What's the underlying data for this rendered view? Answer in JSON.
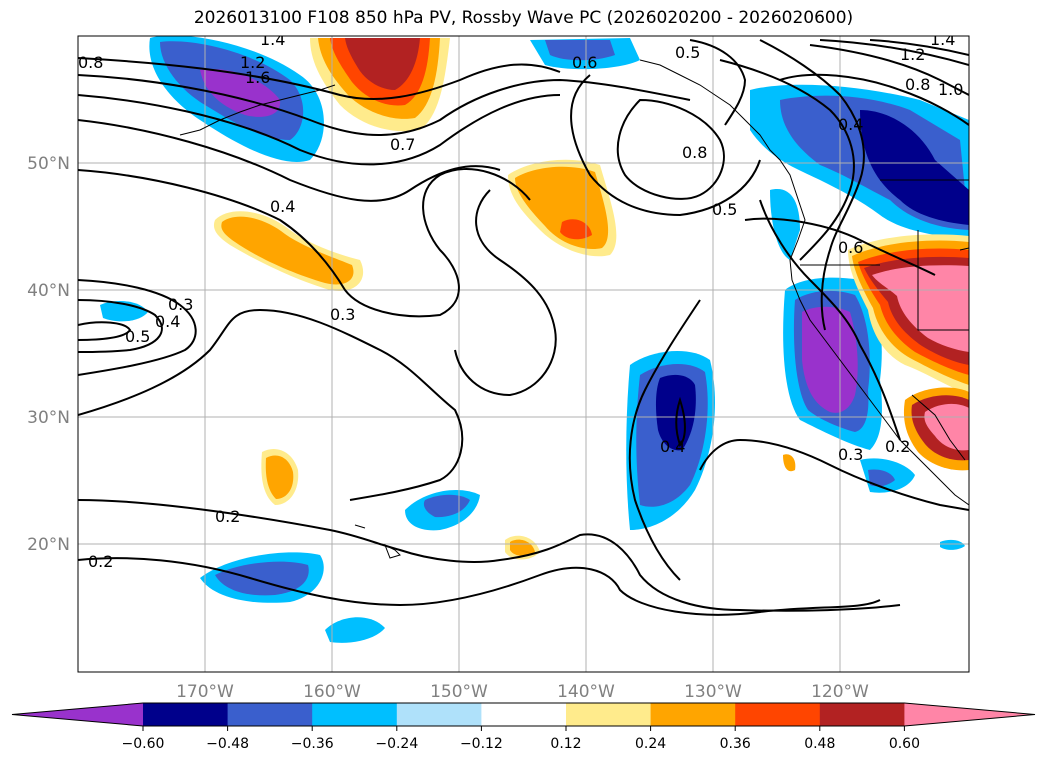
{
  "title": "2026013100 F108 850 hPa PV, Rossby Wave PC (2026020200 - 2026020600)",
  "map": {
    "lon_labels": [
      "170°W",
      "160°W",
      "150°W",
      "140°W",
      "130°W",
      "120°W"
    ],
    "lat_labels": [
      "50°N",
      "40°N",
      "30°N",
      "20°N"
    ],
    "contour_labels": [
      "0.8",
      "1.2",
      "1.6",
      "1.4",
      "0.7",
      "0.6",
      "0.5",
      "0.8",
      "0.5",
      "1.2",
      "1.4",
      "1.0",
      "0.8",
      "0.4",
      "0.4",
      "0.6",
      "0.3",
      "0.3",
      "0.4",
      "0.5",
      "0.4",
      "0.3",
      "0.2",
      "0.2",
      "0.2"
    ]
  },
  "colorbar": {
    "ticks": [
      "−0.60",
      "−0.48",
      "−0.36",
      "−0.24",
      "−0.12",
      "0.12",
      "0.24",
      "0.36",
      "0.48",
      "0.60"
    ],
    "colors": [
      "#9932cc",
      "#00008b",
      "#3a5fcd",
      "#00bfff",
      "#afe1fa",
      "#ffffff",
      "#ffeb8c",
      "#ffa500",
      "#ff4500",
      "#b22222",
      "#ff85a7"
    ]
  }
}
